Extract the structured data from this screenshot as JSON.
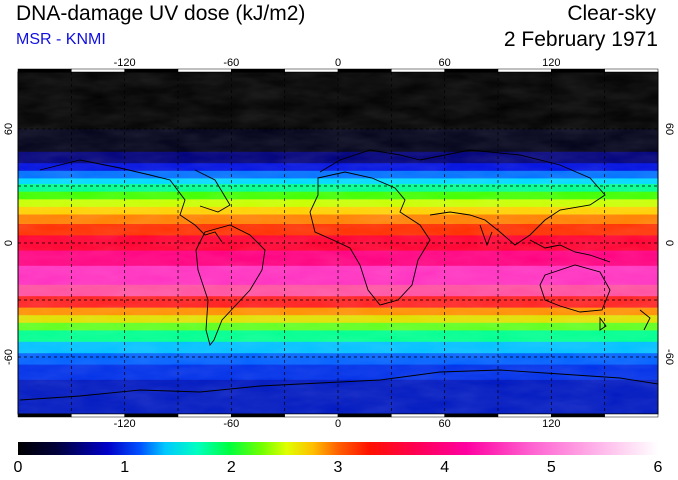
{
  "header": {
    "title": "DNA-damage UV dose (kJ/m2)",
    "subtitle": "MSR - KNMI",
    "mode": "Clear-sky",
    "date": "2 February 1971"
  },
  "map": {
    "lon_ticks": [
      -120,
      -60,
      0,
      60,
      120
    ],
    "lat_ticks": [
      60,
      0,
      -60
    ],
    "lon_range": [
      -180,
      180
    ],
    "lat_range": [
      -90,
      90
    ]
  },
  "colorbar": {
    "labels": [
      "0",
      "1",
      "2",
      "3",
      "4",
      "5",
      "6"
    ],
    "range": [
      0,
      6
    ]
  }
}
